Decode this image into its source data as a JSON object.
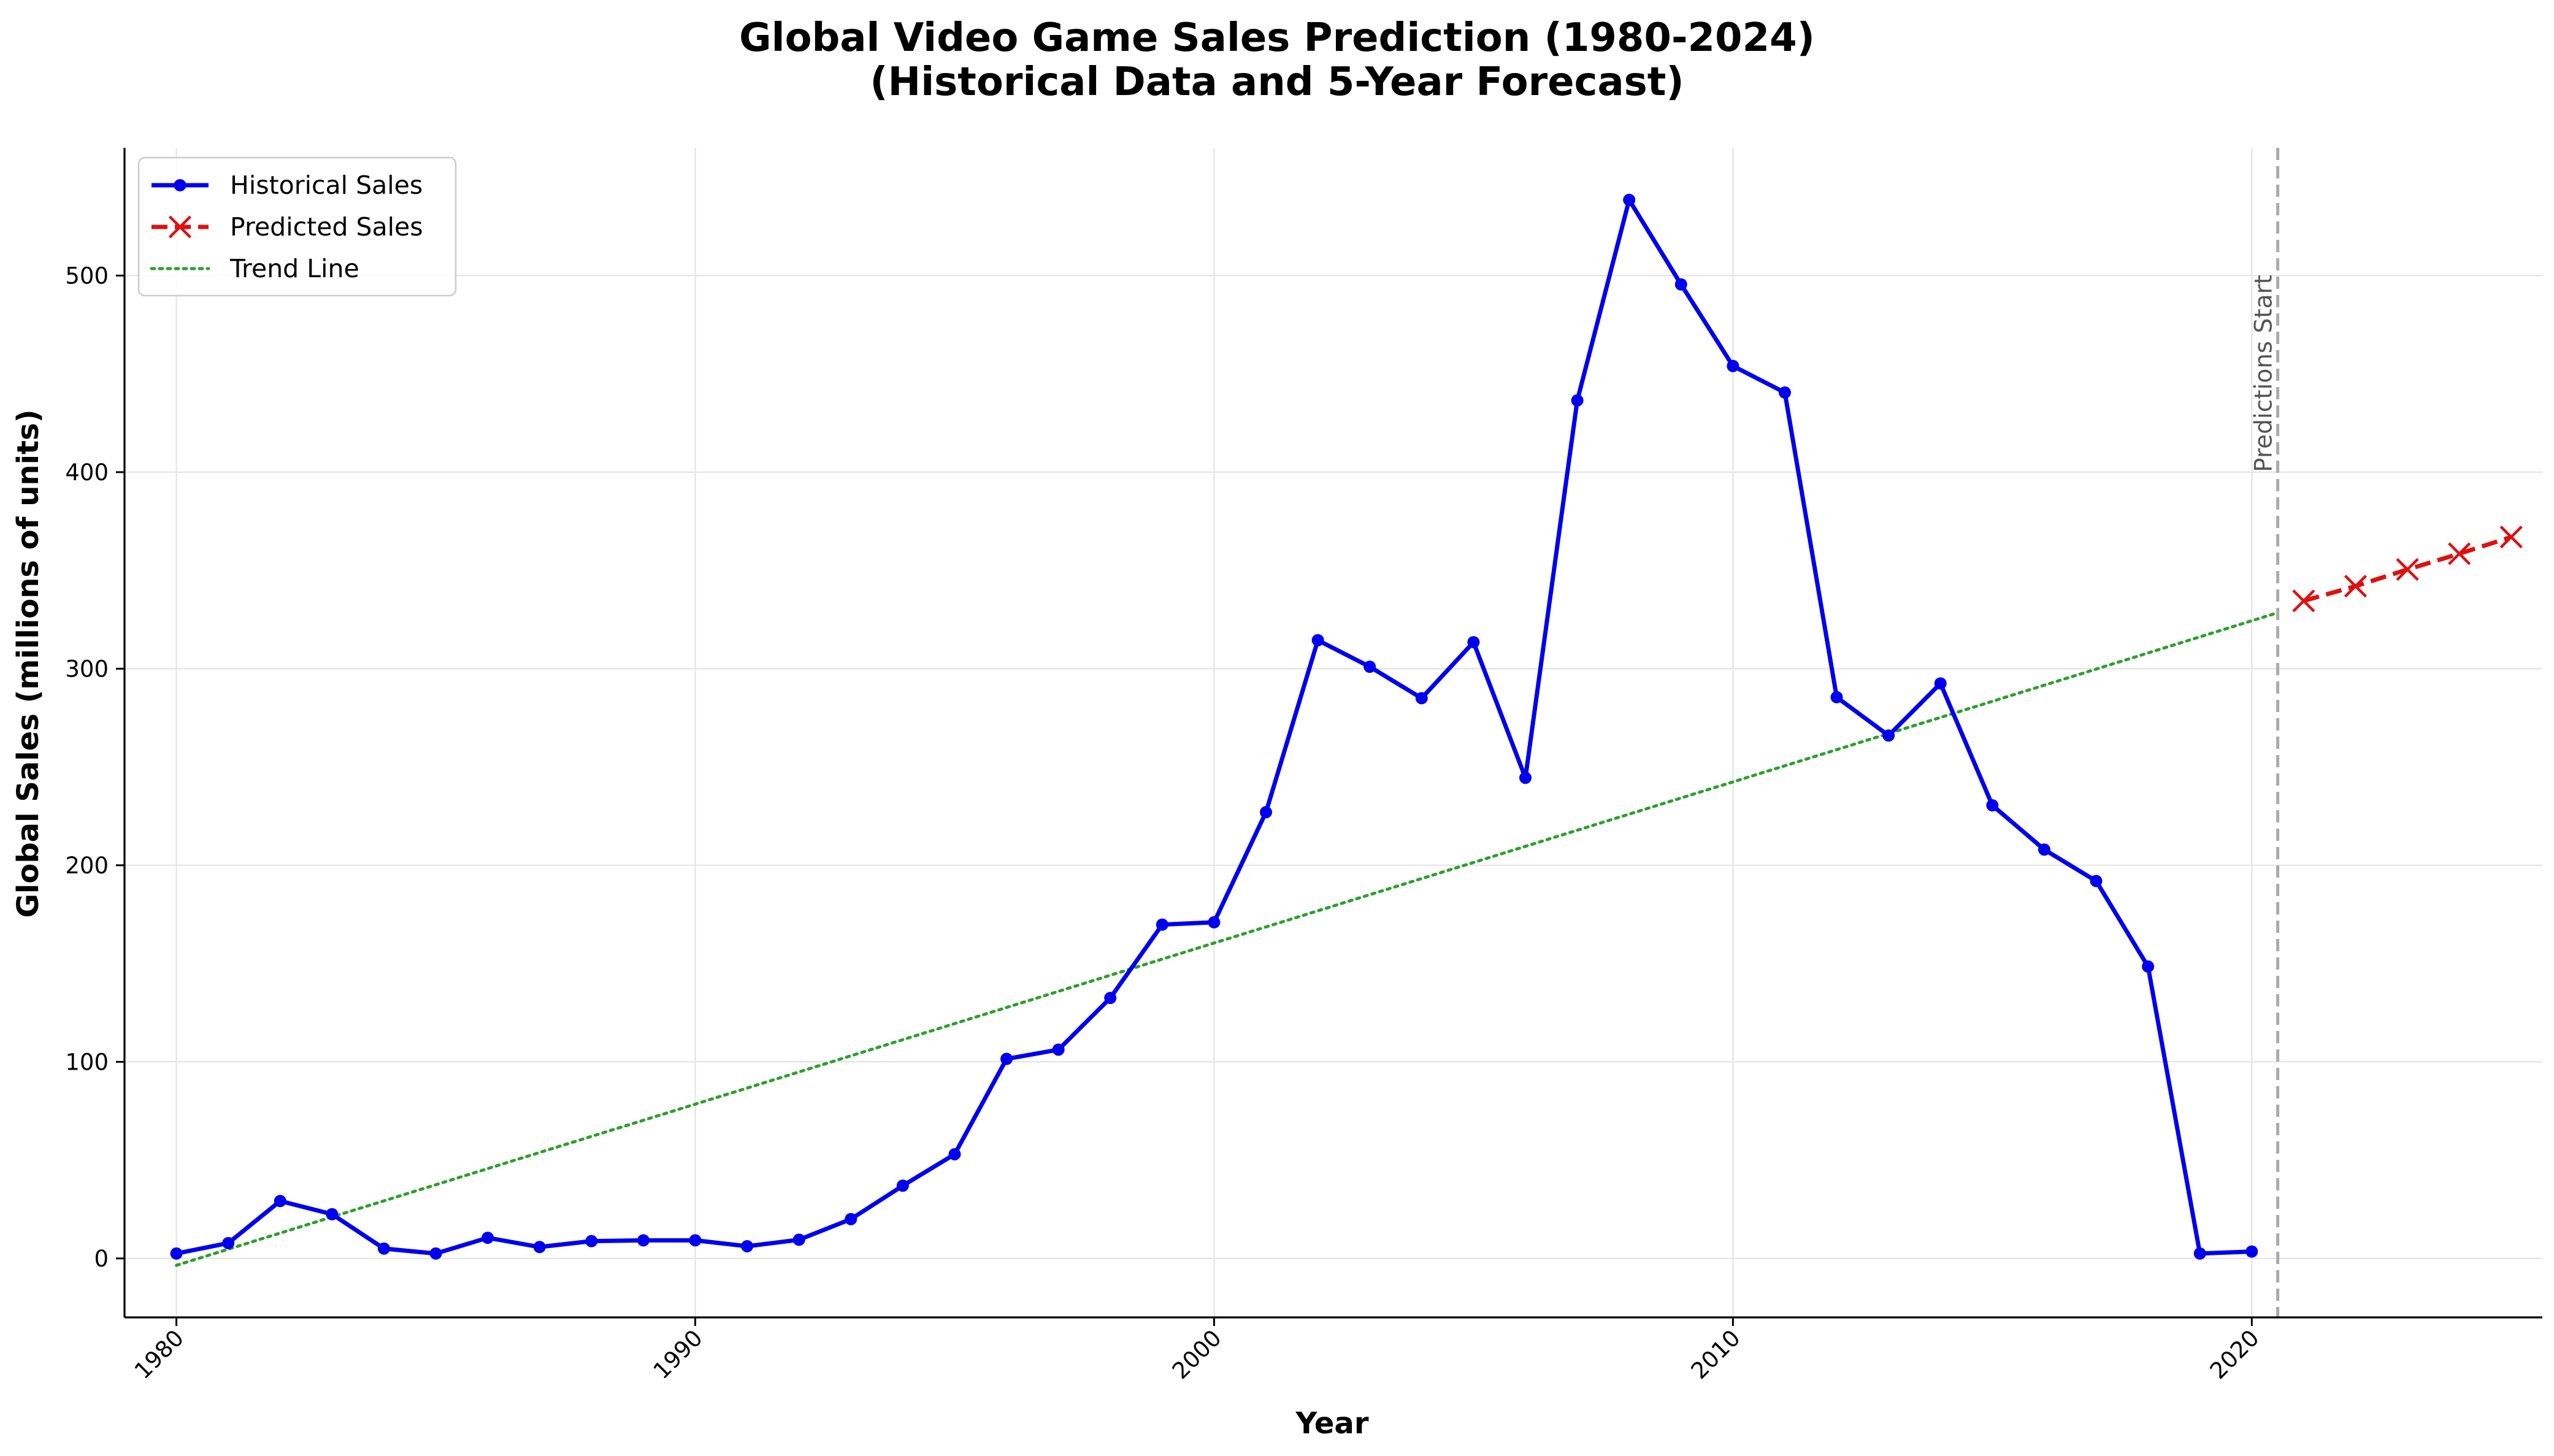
{
  "chart_data": {
    "type": "line",
    "title": "Global Video Game Sales Prediction (1980-2024)",
    "subtitle": "(Historical Data and 5-Year Forecast)",
    "xlabel": "Year",
    "ylabel": "Global Sales (millions of units)",
    "xlim": [
      1979,
      2025.6
    ],
    "ylim": [
      -30,
      565
    ],
    "x_ticks": [
      1980,
      1990,
      2000,
      2010,
      2020
    ],
    "y_ticks": [
      0,
      100,
      200,
      300,
      400,
      500
    ],
    "grid": true,
    "legend_position": "top-left",
    "series": [
      {
        "name": "Historical Sales",
        "style": "solid",
        "marker": "circle",
        "color": "#0000ee",
        "x": [
          1980,
          1981,
          1982,
          1983,
          1984,
          1985,
          1986,
          1987,
          1988,
          1989,
          1990,
          1991,
          1992,
          1993,
          1994,
          1995,
          1996,
          1997,
          1998,
          1999,
          2000,
          2001,
          2002,
          2003,
          2004,
          2005,
          2006,
          2007,
          2008,
          2009,
          2010,
          2011,
          2012,
          2013,
          2014,
          2015,
          2016,
          2017,
          2018,
          2019,
          2020
        ],
        "values": [
          2.5,
          7.8,
          29.2,
          22.5,
          5,
          2.5,
          10.5,
          5.8,
          8.8,
          9.2,
          9.2,
          6.2,
          9.5,
          20,
          37,
          53,
          101.5,
          106.2,
          132.5,
          169.8,
          171,
          227,
          314.5,
          301,
          285,
          313.5,
          244.5,
          436.5,
          538.5,
          495.5,
          454,
          440.5,
          285.5,
          266,
          292.5,
          230.5,
          208,
          192,
          148.5,
          2.5,
          3.5
        ]
      },
      {
        "name": "Predicted Sales",
        "style": "dashed",
        "marker": "x",
        "color": "#dd1111",
        "x": [
          2021,
          2022,
          2023,
          2024,
          2025
        ],
        "values": [
          334.5,
          342,
          350.5,
          358.5,
          367
        ]
      },
      {
        "name": "Trend Line",
        "style": "dotted",
        "marker": "none",
        "color": "#2ca02c",
        "x": [
          1980,
          2020.5
        ],
        "values": [
          -3.5,
          328.5
        ]
      }
    ],
    "annotations": [
      {
        "text": "Predictions Start",
        "x": 2020.5
      }
    ]
  }
}
